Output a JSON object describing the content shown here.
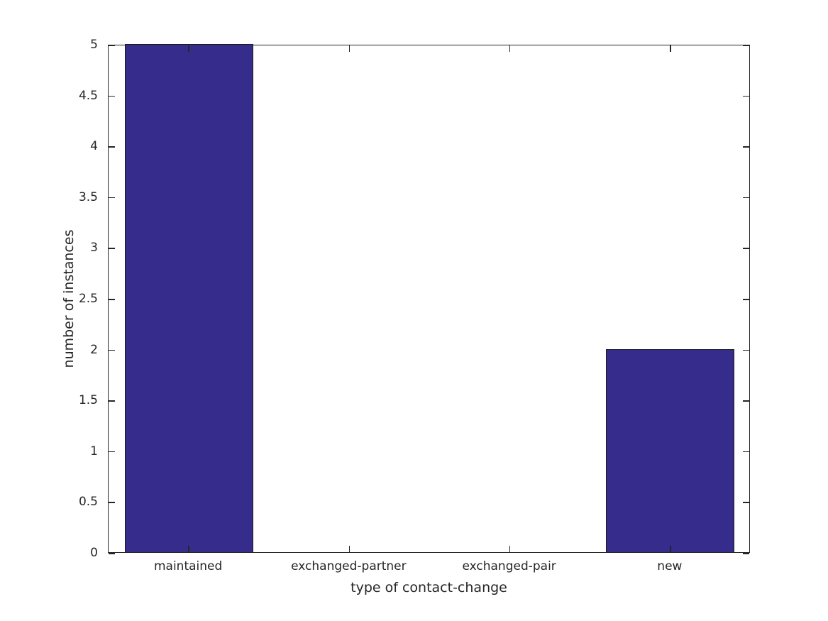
{
  "figure": {
    "background": "#ffffff"
  },
  "chart_data": {
    "type": "bar",
    "categories": [
      "maintained",
      "exchanged-partner",
      "exchanged-pair",
      "new"
    ],
    "values": [
      5,
      0,
      0,
      2
    ],
    "title": "",
    "xlabel": "type of contact-change",
    "ylabel": "number of instances",
    "ylim": [
      0,
      5
    ],
    "yticks": [
      0,
      0.5,
      1,
      1.5,
      2,
      2.5,
      3,
      3.5,
      4,
      4.5,
      5
    ],
    "ytick_labels": [
      "0",
      "0.5",
      "1",
      "1.5",
      "2",
      "2.5",
      "3",
      "3.5",
      "4",
      "4.5",
      "5"
    ],
    "bar_width_fraction": 0.8,
    "bar_color": "#352C8C",
    "bar_edge_color": "#1a1a1a",
    "axis_color": "#262626",
    "grid": false,
    "legend": "none",
    "box": true
  }
}
